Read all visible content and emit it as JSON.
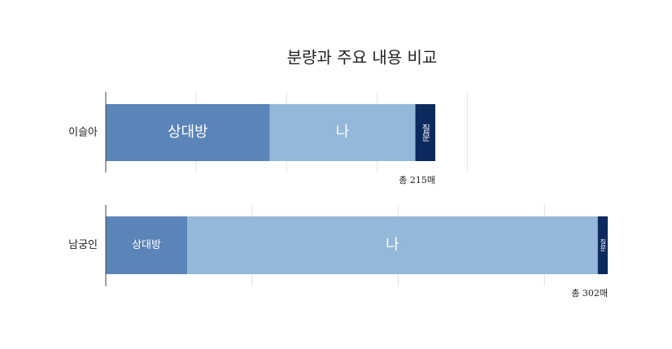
{
  "title": "분량과 주요 내용 비교",
  "chart_data": [
    {
      "type": "bar",
      "orientation": "horizontal",
      "stacked": true,
      "categories": [
        "이슬아"
      ],
      "series": [
        {
          "name": "상대방",
          "color": "#5b84b8",
          "values": [
            107
          ]
        },
        {
          "name": "나",
          "color": "#93b8d9",
          "values": [
            95
          ]
        },
        {
          "name": "질문",
          "color": "#0d2a5e",
          "values": [
            13
          ]
        }
      ],
      "total_label": "총 215매",
      "xlim": [
        0,
        236
      ],
      "xticks": [
        0,
        59,
        118,
        177,
        236
      ],
      "grid": true
    },
    {
      "type": "bar",
      "orientation": "horizontal",
      "stacked": true,
      "categories": [
        "남궁인"
      ],
      "series": [
        {
          "name": "상대방",
          "color": "#5b84b8",
          "values": [
            49
          ]
        },
        {
          "name": "나",
          "color": "#93b8d9",
          "values": [
            247
          ]
        },
        {
          "name": "질문",
          "color": "#0d2a5e",
          "values": [
            6
          ]
        }
      ],
      "total_label": "총 302매",
      "xlim": [
        0,
        302
      ],
      "xticks": [
        0,
        88,
        176,
        264
      ],
      "grid": true
    }
  ]
}
